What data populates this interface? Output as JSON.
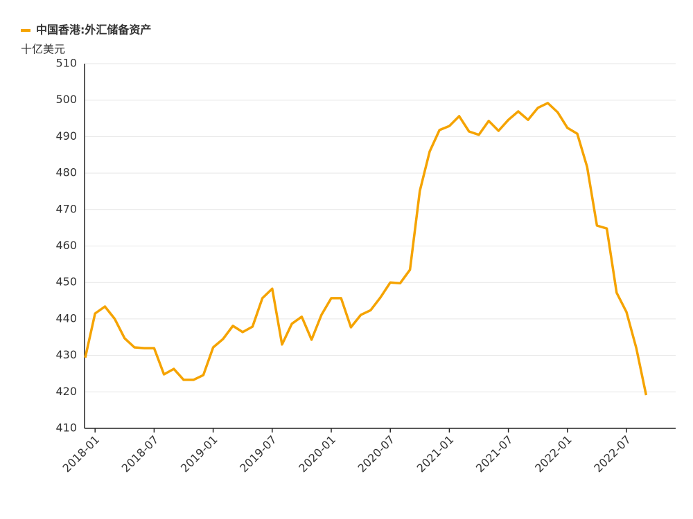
{
  "chart_data": {
    "type": "line",
    "y_label": "十亿美元",
    "x": [
      "2017-12",
      "2018-01",
      "2018-02",
      "2018-03",
      "2018-04",
      "2018-05",
      "2018-06",
      "2018-07",
      "2018-08",
      "2018-09",
      "2018-10",
      "2018-11",
      "2018-12",
      "2019-01",
      "2019-02",
      "2019-03",
      "2019-04",
      "2019-05",
      "2019-06",
      "2019-07",
      "2019-08",
      "2019-09",
      "2019-10",
      "2019-11",
      "2019-12",
      "2020-01",
      "2020-02",
      "2020-03",
      "2020-04",
      "2020-05",
      "2020-06",
      "2020-07",
      "2020-08",
      "2020-09",
      "2020-10",
      "2020-11",
      "2020-12",
      "2021-01",
      "2021-02",
      "2021-03",
      "2021-04",
      "2021-05",
      "2021-06",
      "2021-07",
      "2021-08",
      "2021-09",
      "2021-10",
      "2021-11",
      "2021-12",
      "2022-01",
      "2022-02",
      "2022-03",
      "2022-04",
      "2022-05",
      "2022-06",
      "2022-07",
      "2022-08",
      "2022-09"
    ],
    "series": [
      {
        "name": "中国香港:外汇储备资产",
        "color": "#f5a300",
        "values": [
          429.4,
          441.5,
          443.4,
          440.0,
          434.7,
          432.2,
          432.0,
          432.0,
          424.8,
          426.3,
          423.3,
          423.3,
          424.6,
          432.2,
          434.5,
          438.1,
          436.4,
          437.9,
          445.7,
          448.3,
          433.0,
          438.7,
          440.6,
          434.3,
          441.1,
          445.7,
          445.7,
          437.7,
          441.1,
          442.4,
          445.9,
          450.0,
          449.8,
          453.5,
          475.1,
          485.9,
          491.8,
          492.9,
          495.6,
          491.4,
          490.5,
          494.3,
          491.6,
          494.6,
          496.9,
          494.6,
          497.9,
          499.2,
          496.7,
          492.4,
          490.8,
          481.7,
          465.6,
          464.8,
          447.2,
          441.9,
          432.0,
          419.1
        ]
      }
    ],
    "xlim": [
      "2017-12",
      "2022-12"
    ],
    "xticks": [
      "2018-01",
      "2018-07",
      "2019-01",
      "2019-07",
      "2020-01",
      "2020-07",
      "2021-01",
      "2021-07",
      "2022-01",
      "2022-07"
    ],
    "ylim": [
      410,
      510
    ],
    "yticks": [
      410,
      420,
      430,
      440,
      450,
      460,
      470,
      480,
      490,
      500,
      510
    ],
    "grid": true
  }
}
